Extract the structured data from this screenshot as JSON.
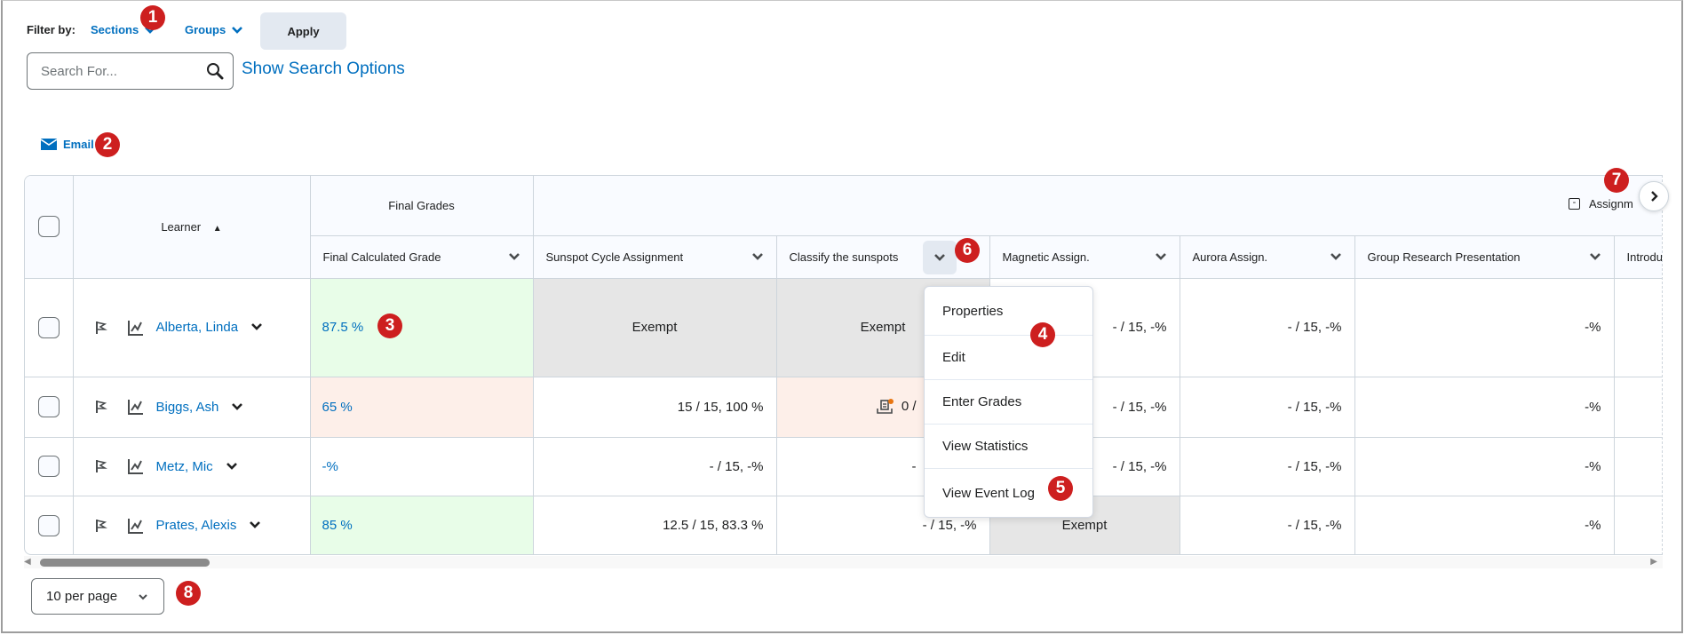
{
  "filter": {
    "label": "Filter by:",
    "sections": "Sections",
    "groups": "Groups",
    "apply": "Apply"
  },
  "search": {
    "placeholder": "Search For...",
    "show_options": "Show Search Options"
  },
  "email": "Email",
  "table": {
    "learner_header": "Learner",
    "final_group": "Final Grades",
    "assign_group": "Assignm",
    "columns": [
      "Final Calculated Grade",
      "Sunspot Cycle Assignment",
      "Classify the sunspots",
      "Magnetic Assign.",
      "Aurora Assign.",
      "Group Research Presentation",
      "Introdu"
    ],
    "rows": [
      {
        "name": "Alberta, Linda",
        "cells": [
          {
            "t": "87.5 %",
            "bg": "green"
          },
          {
            "t": "Exempt",
            "bg": "gray",
            "a": "center"
          },
          {
            "t": "Exempt",
            "bg": "gray",
            "a": "center"
          },
          {
            "t": "- / 15, -%"
          },
          {
            "t": "- / 15, -%"
          },
          {
            "t": "-%"
          },
          {
            "t": ""
          }
        ]
      },
      {
        "name": "Biggs, Ash",
        "cells": [
          {
            "t": "65 %",
            "bg": "pink"
          },
          {
            "t": "15 / 15, 100 %"
          },
          {
            "t": "0 /",
            "bg": "pink",
            "icon": true
          },
          {
            "t": "- / 15, -%"
          },
          {
            "t": "- / 15, -%"
          },
          {
            "t": "-%"
          },
          {
            "t": ""
          }
        ]
      },
      {
        "name": "Metz, Mic",
        "cells": [
          {
            "t": "-%"
          },
          {
            "t": "- / 15, -%"
          },
          {
            "t": "-",
            "hid": true
          },
          {
            "t": "- / 15, -%"
          },
          {
            "t": "- / 15, -%"
          },
          {
            "t": "-%"
          },
          {
            "t": ""
          }
        ]
      },
      {
        "name": "Prates, Alexis",
        "cells": [
          {
            "t": "85 %",
            "bg": "green"
          },
          {
            "t": "12.5 / 15, 83.3 %"
          },
          {
            "t": "- / 15, -%"
          },
          {
            "t": "Exempt",
            "bg": "gray",
            "a": "center"
          },
          {
            "t": "- / 15, -%"
          },
          {
            "t": "-%"
          },
          {
            "t": ""
          }
        ]
      }
    ]
  },
  "menu": [
    "Properties",
    "Edit",
    "Enter Grades",
    "View Statistics",
    "View Event Log"
  ],
  "pagination": {
    "per_page": "10 per page"
  },
  "badges": [
    "1",
    "2",
    "3",
    "4",
    "5",
    "6",
    "7",
    "8"
  ],
  "colors": {
    "link": "#006fbf",
    "badge": "#cd1f1f",
    "green": "#e8fde8",
    "pink": "#fdefe9",
    "gray": "#e6e6e6",
    "header": "#f9fbff"
  }
}
